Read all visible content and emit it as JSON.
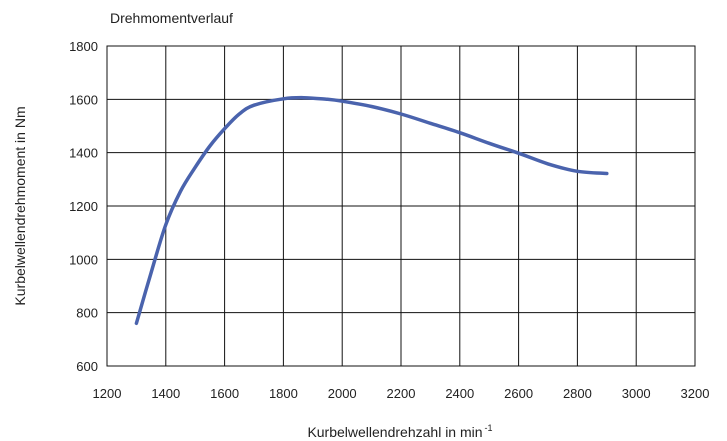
{
  "chart_data": {
    "type": "line",
    "title": "Drehmomentverlauf",
    "xlabel": "Kurbelwellendrehzahl in min",
    "xlabel_superscript": "-1",
    "ylabel": "Kurbelwellendrehmoment in Nm",
    "xlim": [
      1200,
      3200
    ],
    "ylim": [
      600,
      1800
    ],
    "x_ticks": [
      1200,
      1400,
      1600,
      1800,
      2000,
      2200,
      2400,
      2600,
      2800,
      3000,
      3200
    ],
    "y_ticks": [
      600,
      800,
      1000,
      1200,
      1400,
      1600,
      1800
    ],
    "x_tick_labels": [
      "1200",
      "1400",
      "1600",
      "1800",
      "2000",
      "2200",
      "2400",
      "2600",
      "2800",
      "3000",
      "3200"
    ],
    "y_tick_labels": [
      "600",
      "800",
      "1000",
      "1200",
      "1400",
      "1600",
      "1800"
    ],
    "grid": true,
    "series": [
      {
        "color": "#4a63ad",
        "x": [
          1300,
          1350,
          1400,
          1450,
          1500,
          1550,
          1600,
          1650,
          1700,
          1800,
          1870,
          1950,
          2000,
          2100,
          2200,
          2300,
          2400,
          2500,
          2600,
          2700,
          2800,
          2900
        ],
        "y": [
          760,
          950,
          1130,
          1255,
          1345,
          1425,
          1490,
          1545,
          1578,
          1602,
          1606,
          1600,
          1593,
          1573,
          1545,
          1510,
          1475,
          1435,
          1398,
          1358,
          1330,
          1322
        ]
      }
    ]
  }
}
